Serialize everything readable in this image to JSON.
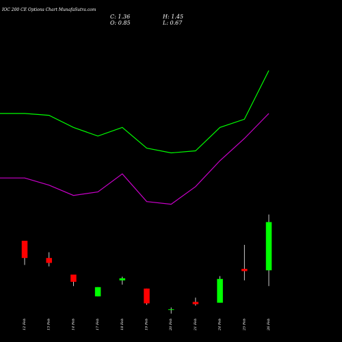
{
  "chart_data": {
    "type": "candlestick",
    "title": "IOC 200 CE Options Chart MunafaSutra.com",
    "ohlc_readout": {
      "c": "C: 1.36",
      "h": "H: 1.45",
      "o": "O: 0.85",
      "l": "L: 0.67"
    },
    "categories": [
      "12 Feb",
      "13 Feb",
      "14 Feb",
      "17 Feb",
      "18 Feb",
      "19 Feb",
      "20 Feb",
      "21 Feb",
      "24 Feb",
      "25 Feb",
      "26 Feb"
    ],
    "candles": [
      {
        "date": "12 Feb",
        "open": 4.6,
        "high": 4.6,
        "low": 3.42,
        "close": 3.76
      },
      {
        "date": "13 Feb",
        "open": 3.76,
        "high": 4.04,
        "low": 3.35,
        "close": 3.52
      },
      {
        "date": "14 Feb",
        "open": 2.95,
        "high": 2.95,
        "low": 2.39,
        "close": 2.6
      },
      {
        "date": "17 Feb",
        "open": 1.89,
        "high": 2.34,
        "low": 1.89,
        "close": 2.34
      },
      {
        "date": "18 Feb",
        "open": 2.67,
        "high": 2.85,
        "low": 2.46,
        "close": 2.77
      },
      {
        "date": "19 Feb",
        "open": 2.27,
        "high": 2.27,
        "low": 1.48,
        "close": 1.55
      },
      {
        "date": "20 Feb",
        "open": 1.26,
        "high": 1.35,
        "low": 1.05,
        "close": 1.26
      },
      {
        "date": "21 Feb",
        "open": 1.62,
        "high": 1.83,
        "low": 1.44,
        "close": 1.51
      },
      {
        "date": "24 Feb",
        "open": 1.58,
        "high": 2.88,
        "low": 1.58,
        "close": 2.74
      },
      {
        "date": "25 Feb",
        "open": 3.23,
        "high": 4.4,
        "low": 2.67,
        "close": 3.12
      },
      {
        "date": "26 Feb",
        "open": 3.16,
        "high": 5.88,
        "low": 2.39,
        "close": 5.51
      }
    ],
    "upper_line": {
      "color": "#00ff00",
      "values": [
        10.8,
        10.8,
        10.71,
        10.12,
        9.7,
        10.12,
        9.11,
        8.88,
        8.98,
        10.12,
        10.52,
        12.89
      ]
    },
    "lower_line": {
      "color": "#cc00cc",
      "values": [
        7.66,
        7.66,
        7.31,
        6.81,
        6.98,
        7.86,
        6.51,
        6.38,
        7.24,
        8.5,
        9.58,
        10.8
      ]
    },
    "line_x": [
      "",
      "12 Feb",
      "13 Feb",
      "14 Feb",
      "17 Feb",
      "18 Feb",
      "19 Feb",
      "20 Feb",
      "21 Feb",
      "24 Feb",
      "25 Feb",
      "26 Feb"
    ],
    "colors": {
      "up": "#00ff00",
      "down": "#ff0000",
      "wick": "#ffffff",
      "background": "#000000"
    },
    "ylim": [
      0,
      16.33
    ]
  }
}
